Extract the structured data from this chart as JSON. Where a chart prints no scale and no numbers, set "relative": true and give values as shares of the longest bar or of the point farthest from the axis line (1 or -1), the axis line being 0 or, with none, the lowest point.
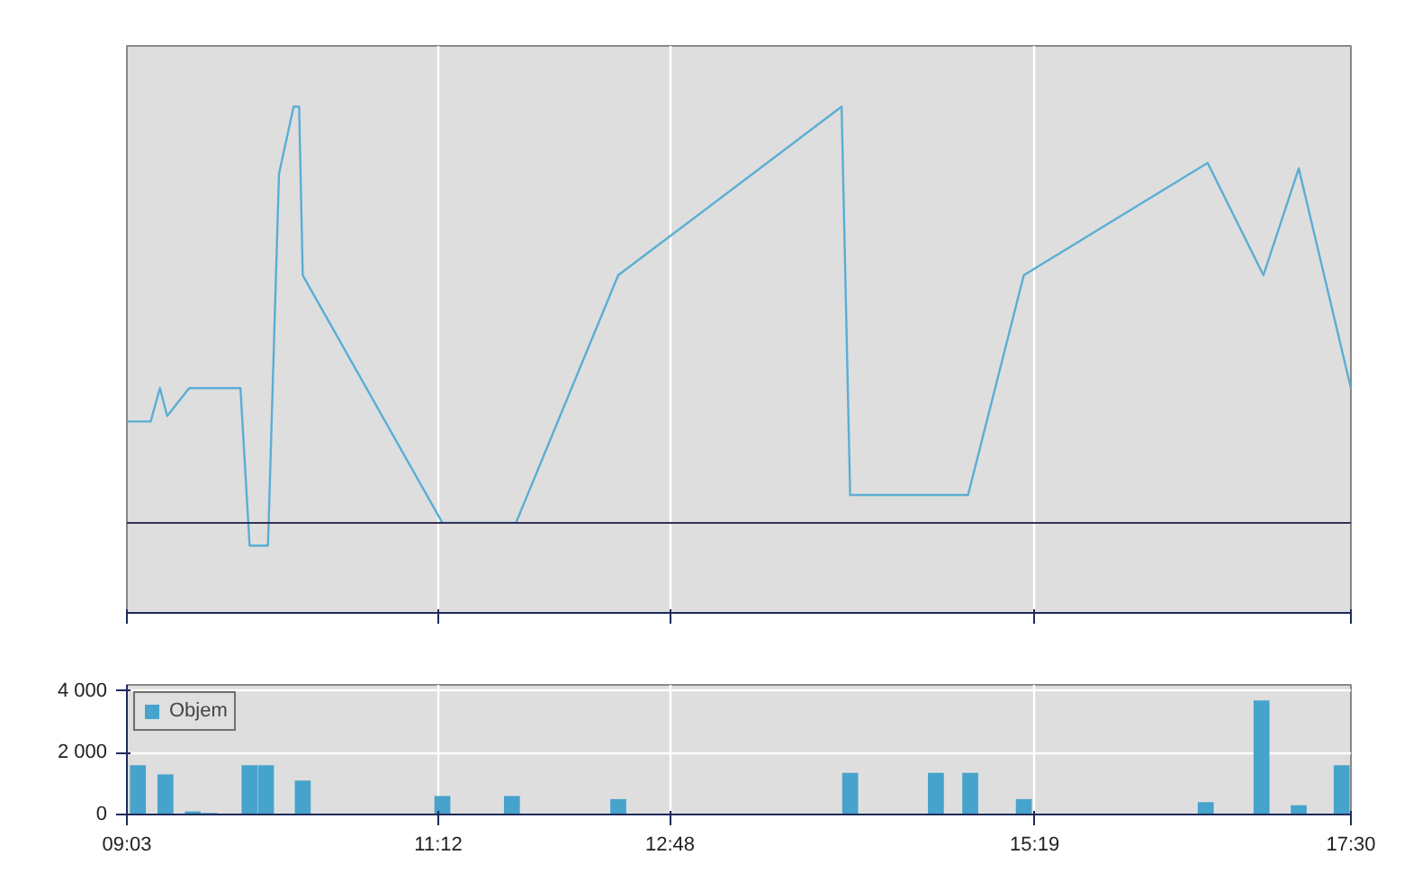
{
  "chart_data": [
    {
      "type": "line",
      "x": [
        9.05,
        9.214,
        9.278,
        9.328,
        9.48,
        9.834,
        9.897,
        10.024,
        10.1,
        10.201,
        10.239,
        10.264,
        11.228,
        11.736,
        12.442,
        13.984,
        14.043,
        14.857,
        15.242,
        16.511,
        16.896,
        17.14,
        17.5
      ],
      "series": [
        {
          "color": "#5aaed4",
          "values": [
            0.378,
            0.378,
            0.444,
            0.389,
            0.444,
            0.444,
            0.133,
            0.133,
            0.867,
            1,
            1,
            0.667,
            0.178,
            0.178,
            0.667,
            1,
            0.233,
            0.233,
            0.667,
            0.889,
            0.667,
            0.878,
            0.444
          ]
        }
      ],
      "relative": true,
      "xlim": [
        9.05,
        17.5
      ],
      "xticks": [
        {
          "value": 9.05,
          "label": null
        },
        {
          "value": 11.2,
          "label": null
        },
        {
          "value": 12.8,
          "label": null
        },
        {
          "value": 15.3167,
          "label": null
        },
        {
          "value": 17.5,
          "label": null
        }
      ],
      "ref_lines": [
        {
          "axis": "y",
          "value": 0.178,
          "color": "#333355"
        }
      ],
      "grid": "x",
      "tick_labels": false
    },
    {
      "type": "bar",
      "x": [
        9.126,
        9.316,
        9.505,
        9.619,
        9.897,
        10.01,
        10.264,
        11.228,
        11.708,
        12.442,
        14.043,
        14.635,
        14.872,
        15.242,
        16.498,
        16.883,
        17.14,
        17.436
      ],
      "series": [
        {
          "name": "Objem",
          "color": "#46a3cc",
          "values": [
            1600,
            1300,
            100,
            50,
            1600,
            1600,
            1100,
            600,
            600,
            500,
            1350,
            1350,
            1350,
            500,
            400,
            3700,
            300,
            1600
          ]
        }
      ],
      "xlim": [
        9.05,
        17.5
      ],
      "ylim": [
        0,
        4200
      ],
      "xticks": [
        {
          "value": 9.05,
          "label": "09:03"
        },
        {
          "value": 11.2,
          "label": "11:12"
        },
        {
          "value": 12.8,
          "label": "12:48"
        },
        {
          "value": 15.3167,
          "label": "15:19"
        },
        {
          "value": 17.5,
          "label": "17:30"
        }
      ],
      "yticks": [
        0,
        {
          "value": 2000,
          "label": "2 000"
        },
        {
          "value": 4000,
          "label": "4 000"
        }
      ],
      "grid": true,
      "legend": "top left"
    }
  ]
}
